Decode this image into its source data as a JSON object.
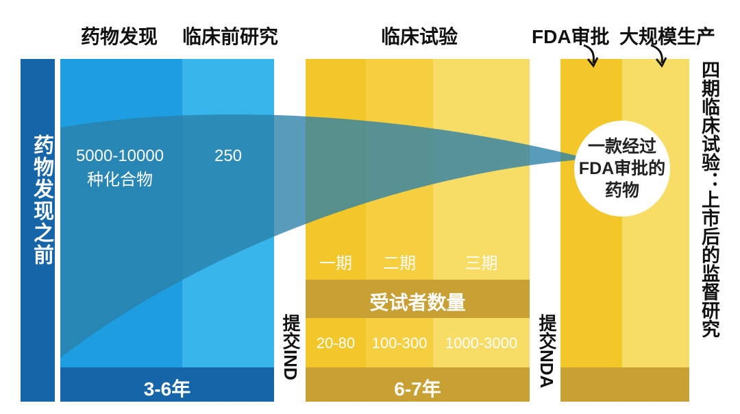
{
  "headers": {
    "drug_discovery": "药物发现",
    "preclinical": "临床前研究",
    "clinical_trials": "临床试验",
    "fda_approval": "FDA审批",
    "mass_production": "大规模生产"
  },
  "left_bar": {
    "label": "药物发现之前"
  },
  "discovery": {
    "compounds_line1": "5000-10000",
    "compounds_line2": "种化合物",
    "preclinical_count": "250",
    "duration": "3-6年"
  },
  "ind": {
    "label": "提交IND"
  },
  "clinical": {
    "phases": [
      "一期",
      "二期",
      "三期"
    ],
    "participants_title": "受试者数量",
    "participants": [
      "20-80",
      "100-300",
      "1000-3000"
    ],
    "duration": "6-7年"
  },
  "nda": {
    "label": "提交NDA"
  },
  "circle": {
    "line1": "一款经过",
    "line2": "FDA审批的",
    "line3": "药物"
  },
  "phase4": {
    "label": "四期临床试验：上市后的监督研究"
  },
  "colors": {
    "dark_blue": "#1565a8",
    "blue1": "#1e9ee0",
    "blue2": "#38b6ec",
    "funnel": "#2a7fa8",
    "yellow1": "#f3c62a",
    "yellow2": "#f5cf3f",
    "yellow3": "#f7dc66",
    "band": "#c9a033"
  }
}
